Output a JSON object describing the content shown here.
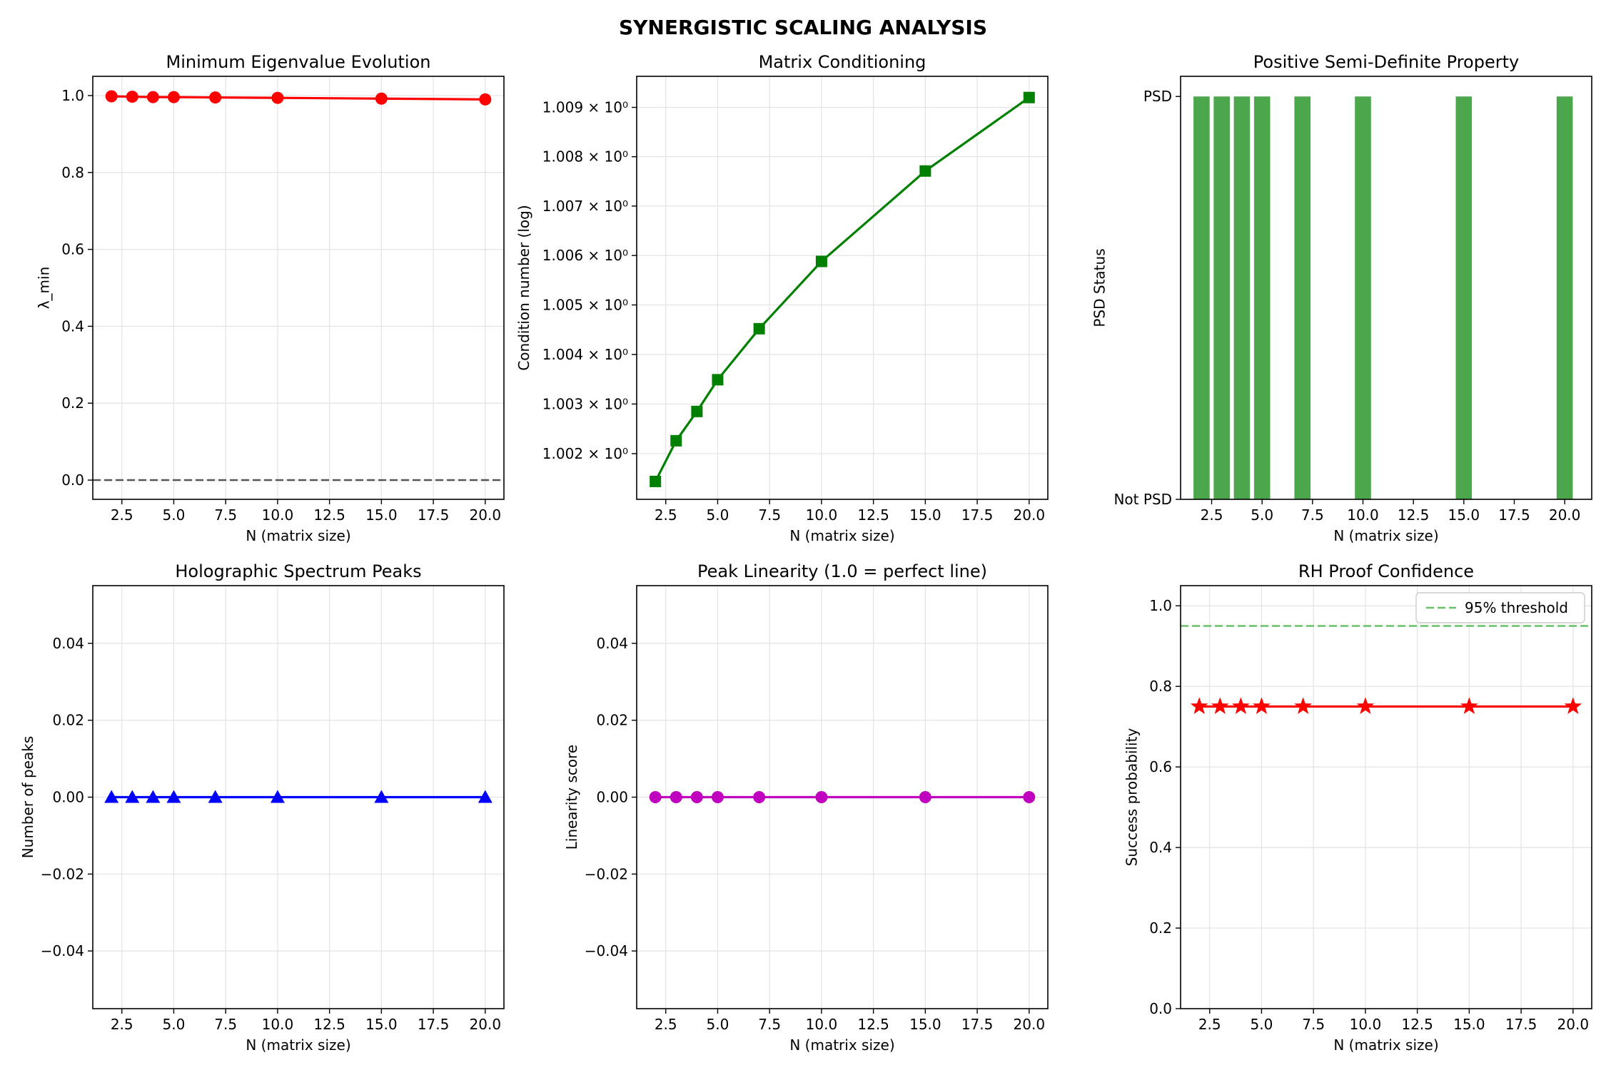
{
  "figure_title": "SYNERGISTIC SCALING ANALYSIS",
  "chart_data": [
    {
      "id": "min-eigenvalue",
      "type": "line",
      "title": "Minimum Eigenvalue Evolution",
      "xlabel": "N (matrix size)",
      "ylabel": "λ_min",
      "xlim": [
        1.1,
        20.9
      ],
      "ylim": [
        -0.05,
        1.05
      ],
      "xticks": [
        2.5,
        5.0,
        7.5,
        10.0,
        12.5,
        15.0,
        17.5,
        20.0
      ],
      "yticks": [
        0.0,
        0.2,
        0.4,
        0.6,
        0.8,
        1.0
      ],
      "ytick_labels": [
        "0.0",
        "0.2",
        "0.4",
        "0.6",
        "0.8",
        "1.0"
      ],
      "grid": true,
      "series": [
        {
          "x": [
            2,
            3,
            4,
            5,
            7,
            10,
            15,
            20
          ],
          "y": [
            0.998,
            0.997,
            0.996,
            0.996,
            0.995,
            0.994,
            0.992,
            0.99
          ],
          "color": "#ff0000",
          "marker": "circle"
        }
      ],
      "reference_lines": [
        {
          "y": 0.0,
          "color": "#555555",
          "style": "dashed"
        }
      ]
    },
    {
      "id": "matrix-conditioning",
      "type": "line",
      "title": "Matrix Conditioning",
      "xlabel": "N (matrix size)",
      "ylabel": "Condition number (log)",
      "xlim": [
        1.1,
        20.9
      ],
      "ylim": [
        1.00108,
        1.00963
      ],
      "yscale": "log",
      "xticks": [
        2.5,
        5.0,
        7.5,
        10.0,
        12.5,
        15.0,
        17.5,
        20.0
      ],
      "yticks": [
        1.002,
        1.003,
        1.004,
        1.005,
        1.006,
        1.007,
        1.008,
        1.009
      ],
      "ytick_labels": [
        "1.002 × 10⁰",
        "1.003 × 10⁰",
        "1.004 × 10⁰",
        "1.005 × 10⁰",
        "1.006 × 10⁰",
        "1.007 × 10⁰",
        "1.008 × 10⁰",
        "1.009 × 10⁰"
      ],
      "grid": true,
      "series": [
        {
          "x": [
            2,
            3,
            4,
            5,
            7,
            10,
            15,
            20
          ],
          "y": [
            1.00144,
            1.00226,
            1.00285,
            1.00349,
            1.00452,
            1.00588,
            1.00771,
            1.0092
          ],
          "color": "#008000",
          "marker": "square"
        }
      ]
    },
    {
      "id": "psd-property",
      "type": "bar",
      "title": "Positive Semi-Definite Property",
      "xlabel": "N (matrix size)",
      "ylabel": "PSD Status",
      "xlim": [
        0.96,
        21.34
      ],
      "ylim": [
        0,
        1.05
      ],
      "xticks": [
        2.5,
        5.0,
        7.5,
        10.0,
        12.5,
        15.0,
        17.5,
        20.0
      ],
      "yticks": [
        0,
        1
      ],
      "ytick_labels": [
        "Not PSD",
        "PSD"
      ],
      "grid": false,
      "series": [
        {
          "x": [
            2,
            3,
            4,
            5,
            7,
            10,
            15,
            20
          ],
          "y": [
            1,
            1,
            1,
            1,
            1,
            1,
            1,
            1
          ],
          "color": "#4ca64c",
          "bar_width": 0.8
        }
      ]
    },
    {
      "id": "spectrum-peaks",
      "type": "line",
      "title": "Holographic Spectrum Peaks",
      "xlabel": "N (matrix size)",
      "ylabel": "Number of peaks",
      "xlim": [
        1.1,
        20.9
      ],
      "ylim": [
        -0.055,
        0.055
      ],
      "xticks": [
        2.5,
        5.0,
        7.5,
        10.0,
        12.5,
        15.0,
        17.5,
        20.0
      ],
      "yticks": [
        -0.04,
        -0.02,
        0.0,
        0.02,
        0.04
      ],
      "ytick_labels": [
        "−0.04",
        "−0.02",
        "0.00",
        "0.02",
        "0.04"
      ],
      "grid": true,
      "series": [
        {
          "x": [
            2,
            3,
            4,
            5,
            7,
            10,
            15,
            20
          ],
          "y": [
            0,
            0,
            0,
            0,
            0,
            0,
            0,
            0
          ],
          "color": "#0000ff",
          "marker": "triangle"
        }
      ]
    },
    {
      "id": "peak-linearity",
      "type": "line",
      "title": "Peak Linearity (1.0 = perfect line)",
      "xlabel": "N (matrix size)",
      "ylabel": "Linearity score",
      "xlim": [
        1.1,
        20.9
      ],
      "ylim": [
        -0.055,
        0.055
      ],
      "xticks": [
        2.5,
        5.0,
        7.5,
        10.0,
        12.5,
        15.0,
        17.5,
        20.0
      ],
      "yticks": [
        -0.04,
        -0.02,
        0.0,
        0.02,
        0.04
      ],
      "ytick_labels": [
        "−0.04",
        "−0.02",
        "0.00",
        "0.02",
        "0.04"
      ],
      "grid": true,
      "series": [
        {
          "x": [
            2,
            3,
            4,
            5,
            7,
            10,
            15,
            20
          ],
          "y": [
            0,
            0,
            0,
            0,
            0,
            0,
            0,
            0
          ],
          "color": "#bf00bf",
          "marker": "circle"
        }
      ]
    },
    {
      "id": "rh-confidence",
      "type": "line",
      "title": "RH Proof Confidence",
      "xlabel": "N (matrix size)",
      "ylabel": "Success probability",
      "xlim": [
        1.1,
        20.9
      ],
      "ylim": [
        0.0,
        1.05
      ],
      "xticks": [
        2.5,
        5.0,
        7.5,
        10.0,
        12.5,
        15.0,
        17.5,
        20.0
      ],
      "yticks": [
        0.0,
        0.2,
        0.4,
        0.6,
        0.8,
        1.0
      ],
      "ytick_labels": [
        "0.0",
        "0.2",
        "0.4",
        "0.6",
        "0.8",
        "1.0"
      ],
      "grid": true,
      "series": [
        {
          "x": [
            2,
            3,
            4,
            5,
            7,
            10,
            15,
            20
          ],
          "y": [
            0.75,
            0.75,
            0.75,
            0.75,
            0.75,
            0.75,
            0.75,
            0.75
          ],
          "color": "#ff0000",
          "marker": "star"
        }
      ],
      "reference_lines": [
        {
          "y": 0.95,
          "color": "#6abf6a",
          "style": "dashed",
          "label": "95% threshold"
        }
      ],
      "legend": {
        "position": "top-right",
        "entries": [
          "95% threshold"
        ]
      }
    }
  ]
}
